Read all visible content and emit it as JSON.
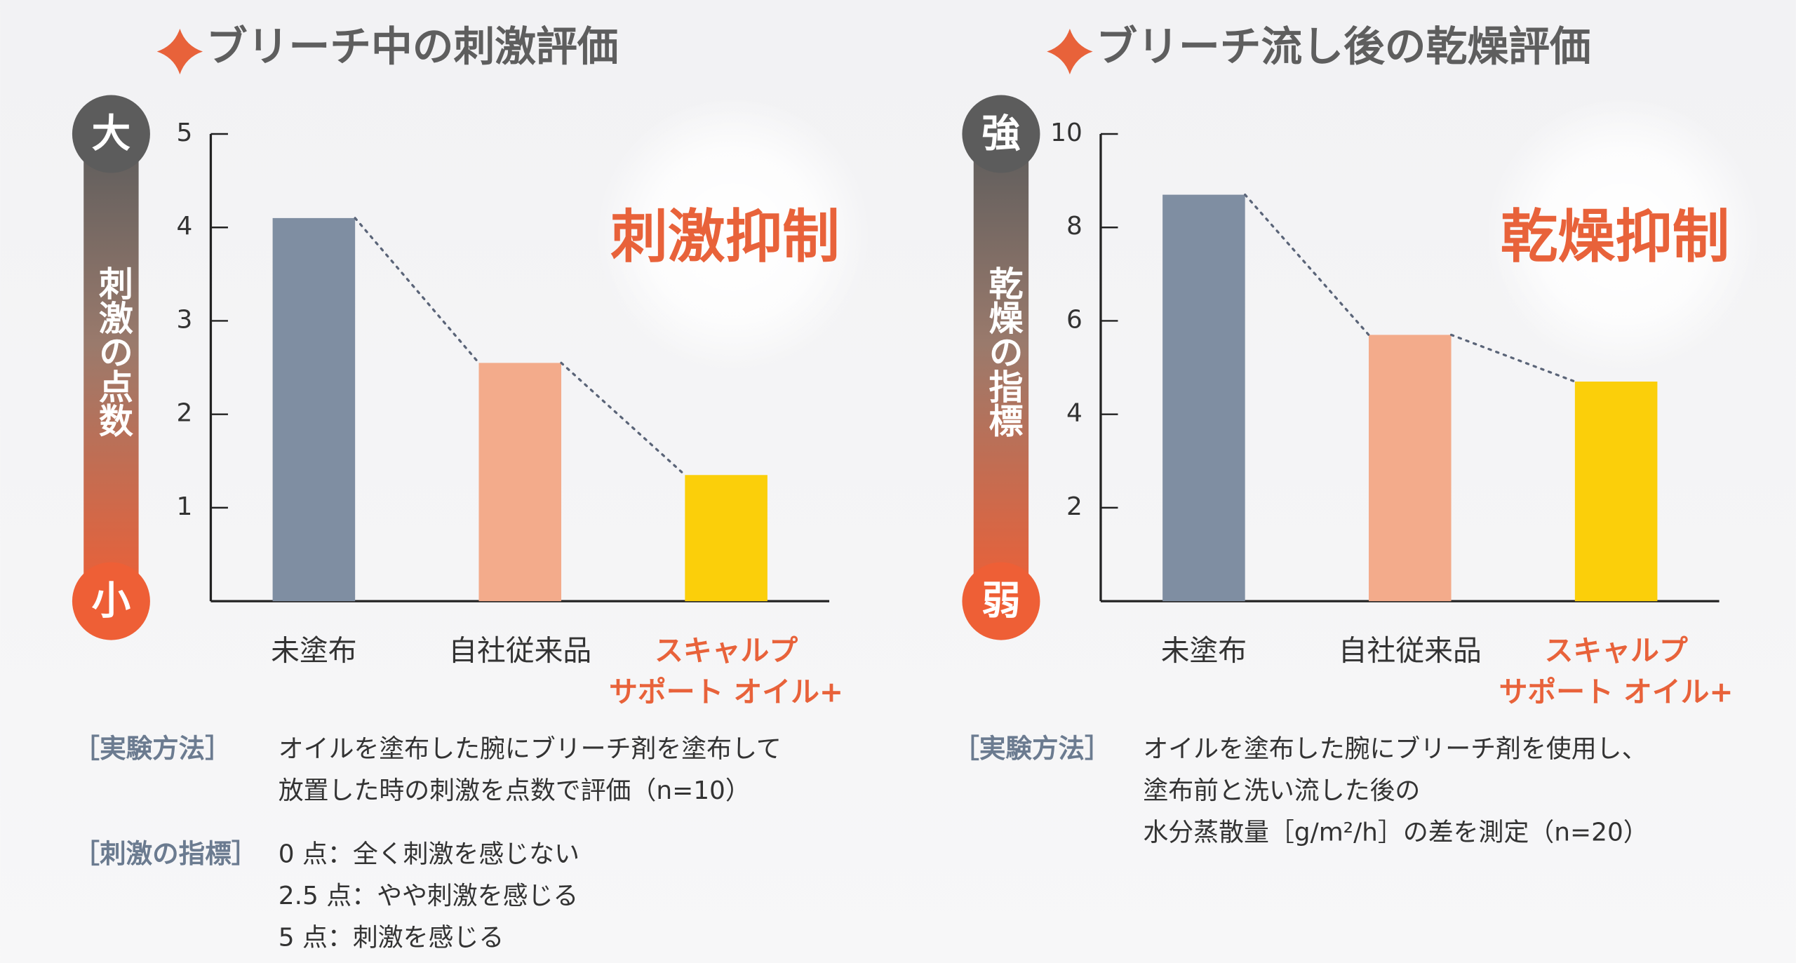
{
  "chart_data": [
    {
      "type": "bar",
      "title": "ブリーチ中の刺激評価",
      "categories": [
        "未塗布",
        "自社従来品",
        "スキャルプ\nサポート オイル+"
      ],
      "values": [
        4.1,
        2.55,
        1.35
      ],
      "colors": [
        "#7f8ea2",
        "#f3ab8b",
        "#fbcf0a"
      ],
      "ylim": [
        0,
        5
      ],
      "yticks": [
        1,
        2,
        3,
        4,
        5
      ],
      "scale": {
        "top": "大",
        "bottom": "小",
        "label": "刺激の点数"
      },
      "annotation": "刺激抑制",
      "notes": [
        {
          "label": "［実験方法］",
          "lines": [
            "オイルを塗布した腕にブリーチ剤を塗布して",
            "放置した時の刺激を点数で評価（n=10）"
          ]
        },
        {
          "label": "［刺激の指標］",
          "lines": [
            "0 点：全く刺激を感じない",
            "2.5 点：やや刺激を感じる",
            "5 点：刺激を感じる"
          ]
        }
      ]
    },
    {
      "type": "bar",
      "title": "ブリーチ流し後の乾燥評価",
      "categories": [
        "未塗布",
        "自社従来品",
        "スキャルプ\nサポート オイル+"
      ],
      "values": [
        8.7,
        5.7,
        4.7
      ],
      "colors": [
        "#7f8ea2",
        "#f3ab8b",
        "#fbcf0a"
      ],
      "ylim": [
        0,
        10
      ],
      "yticks": [
        2,
        4,
        6,
        8,
        10
      ],
      "scale": {
        "top": "強",
        "bottom": "弱",
        "label": "乾燥の指標"
      },
      "annotation": "乾燥抑制",
      "notes": [
        {
          "label": "［実験方法］",
          "lines": [
            "オイルを塗布した腕にブリーチ剤を使用し、",
            "塗布前と洗い流した後の",
            "水分蒸散量［g/m²/h］の差を測定（n=20）"
          ]
        }
      ]
    }
  ]
}
